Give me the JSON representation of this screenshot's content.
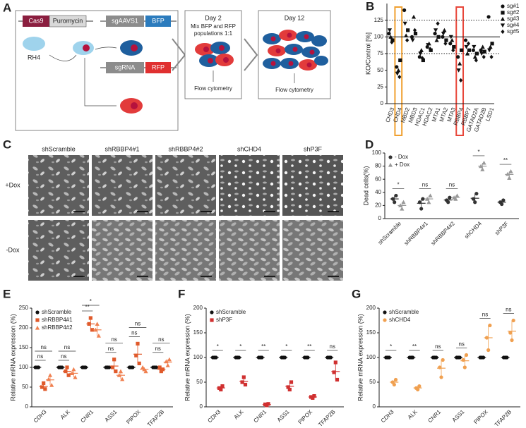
{
  "panel_labels": [
    "A",
    "B",
    "C",
    "D",
    "E",
    "F",
    "G"
  ],
  "diagram": {
    "cas9": "Cas9",
    "puromycin": "Puromycin",
    "cell_line": "RH4",
    "control_guide": "sgAAVS1",
    "control_reporter": "BFP",
    "guide": "sgRNA",
    "reporter": "RFP",
    "day2": {
      "title": "Day 2",
      "text": [
        "Mix BFP and RFP",
        "populations 1:1"
      ],
      "readout": "Flow cytometry"
    },
    "day12": {
      "title": "Day 12",
      "readout": "Flow cytometry"
    }
  },
  "images": {
    "columns": [
      "shScramble",
      "shRBBP4#1",
      "shRBBP4#2",
      "shCHD4",
      "shP3F"
    ],
    "rows": [
      "+Dox",
      "-Dox"
    ]
  },
  "chart_data": [
    {
      "type": "strip",
      "ylabel": "KO/Control [%]",
      "categories": [
        "CHD3",
        "CHD4",
        "MBD2",
        "MBD3",
        "HDAC1",
        "HDAC2",
        "MTA1",
        "MTA2",
        "MTA3",
        "RBBP4",
        "RBBP7",
        "GATAD2A",
        "GATAD2B",
        "LSD1"
      ],
      "highlight_colors": [
        null,
        "#f0a030",
        null,
        null,
        null,
        null,
        null,
        null,
        null,
        "#e8463a",
        null,
        null,
        null,
        null
      ],
      "ylim": [
        0,
        150
      ],
      "yticks": [
        0,
        25,
        50,
        75,
        100,
        125
      ],
      "reference_lines": [
        {
          "value": 100,
          "style": "solid"
        },
        {
          "value": 75,
          "style": "dotted"
        },
        {
          "value": 125,
          "style": "dotted"
        }
      ],
      "legend": "right",
      "series": [
        {
          "name": "sg#1",
          "color": "#111",
          "marker": "circle",
          "values": [
            105,
            55,
            140,
            100,
            70,
            85,
            105,
            100,
            90,
            70,
            95,
            80,
            80,
            130
          ]
        },
        {
          "name": "sg#2",
          "color": "#111",
          "marker": "square",
          "values": [
            95,
            65,
            110,
            105,
            65,
            80,
            100,
            95,
            85,
            80,
            80,
            75,
            78,
            90
          ]
        },
        {
          "name": "sg#3",
          "color": "#111",
          "marker": "triangle",
          "values": [
            100,
            50,
            102,
            130,
            80,
            90,
            95,
            110,
            95,
            60,
            75,
            70,
            85,
            85
          ]
        },
        {
          "name": "sg#4",
          "color": "#111",
          "marker": "triangle-down",
          "values": [
            110,
            45,
            120,
            95,
            75,
            88,
            110,
            105,
            100,
            50,
            85,
            85,
            75,
            80
          ]
        },
        {
          "name": "sg#5",
          "color": "#111",
          "marker": "diamond",
          "values": [
            92,
            40,
            95,
            110,
            68,
            82,
            120,
            90,
            80,
            35,
            90,
            65,
            70,
            70
          ]
        }
      ]
    },
    {
      "type": "dot",
      "ylabel": "Dead cells(%)",
      "categories": [
        "shScramble",
        "shRBBP4#1",
        "shRBBP4#2",
        "shCHD4",
        "shP3F"
      ],
      "ylim": [
        0,
        100
      ],
      "yticks": [
        0,
        20,
        40,
        60,
        80,
        100
      ],
      "legend": "top-left",
      "annotations": [
        [
          "*"
        ],
        [
          "ns"
        ],
        [
          "ns"
        ],
        [
          "*"
        ],
        [
          "**"
        ]
      ],
      "series": [
        {
          "name": "- Dox",
          "color": "#333",
          "marker": "circle",
          "values": [
            [
              30,
              25,
              35
            ],
            [
              25,
              15,
              30
            ],
            [
              28,
              25,
              32
            ],
            [
              30,
              25,
              38
            ],
            [
              25,
              22,
              28
            ]
          ]
        },
        {
          "name": "+ Dox",
          "color": "#999",
          "marker": "triangle",
          "values": [
            [
              20,
              15,
              25
            ],
            [
              30,
              25,
              35
            ],
            [
              32,
              30,
              35
            ],
            [
              80,
              75,
              85
            ],
            [
              68,
              62,
              72
            ]
          ]
        }
      ]
    },
    {
      "type": "dot",
      "ylabel": "Relative mRNA expression (%)",
      "categories": [
        "CDH3",
        "ALK",
        "CNR1",
        "ASS1",
        "PIPOX",
        "TFAP2B"
      ],
      "ylim": [
        0,
        250
      ],
      "yticks": [
        0,
        50,
        100,
        150,
        200,
        250
      ],
      "legend": "top-left",
      "annotations": [
        [
          "ns",
          "ns"
        ],
        [
          "ns",
          "ns"
        ],
        [
          "**",
          "*"
        ],
        [
          "ns",
          "ns"
        ],
        [
          "ns",
          "ns"
        ],
        [
          "ns",
          "ns"
        ]
      ],
      "series": [
        {
          "name": "shScramble",
          "color": "#111",
          "marker": "circle",
          "values": [
            [
              100,
              100,
              100
            ],
            [
              100,
              100,
              100
            ],
            [
              100,
              100,
              100
            ],
            [
              100,
              100,
              100
            ],
            [
              100,
              100,
              100
            ],
            [
              100,
              100,
              100
            ]
          ]
        },
        {
          "name": "shRBBP4#1",
          "color": "#e05a2b",
          "marker": "square",
          "values": [
            [
              50,
              60,
              45
            ],
            [
              90,
              100,
              80
            ],
            [
              210,
              225,
              195
            ],
            [
              100,
              120,
              90
            ],
            [
              130,
              160,
              110
            ],
            [
              100,
              90,
              95
            ]
          ]
        },
        {
          "name": "shRBBP4#2",
          "color": "#f08050",
          "marker": "triangle",
          "values": [
            [
              70,
              80,
              55
            ],
            [
              85,
              95,
              75
            ],
            [
              195,
              210,
              180
            ],
            [
              80,
              90,
              70
            ],
            [
              100,
              95,
              90
            ],
            [
              115,
              105,
              120
            ]
          ]
        }
      ]
    },
    {
      "type": "dot",
      "ylabel": "Relative mRNA expression (%)",
      "categories": [
        "CDH3",
        "ALK",
        "CNR1",
        "ASS1",
        "PIPOX",
        "TFAP2B"
      ],
      "ylim": [
        0,
        200
      ],
      "yticks": [
        0,
        50,
        100,
        150,
        200
      ],
      "legend": "top-left",
      "annotations": [
        [
          "*"
        ],
        [
          "*"
        ],
        [
          "**"
        ],
        [
          "*"
        ],
        [
          "**"
        ],
        [
          "ns"
        ]
      ],
      "series": [
        {
          "name": "shScramble",
          "color": "#111",
          "marker": "circle",
          "values": [
            [
              100,
              100,
              100
            ],
            [
              100,
              100,
              100
            ],
            [
              100,
              100,
              100
            ],
            [
              100,
              100,
              100
            ],
            [
              100,
              100,
              100
            ],
            [
              100,
              100,
              100
            ]
          ]
        },
        {
          "name": "shP3F",
          "color": "#d03030",
          "marker": "square",
          "values": [
            [
              38,
              35,
              42
            ],
            [
              50,
              60,
              45
            ],
            [
              5,
              3,
              6
            ],
            [
              40,
              35,
              50
            ],
            [
              20,
              18,
              22
            ],
            [
              70,
              90,
              55
            ]
          ]
        }
      ]
    },
    {
      "type": "dot",
      "ylabel": "Relative mRNA expression (%)",
      "categories": [
        "CDH3",
        "ALK",
        "CNR1",
        "ASS1",
        "PIPOX",
        "TFAP2B"
      ],
      "ylim": [
        0,
        200
      ],
      "yticks": [
        0,
        50,
        100,
        150,
        200
      ],
      "legend": "top-left",
      "annotations": [
        [
          "*"
        ],
        [
          "**"
        ],
        [
          "ns"
        ],
        [
          "ns"
        ],
        [
          "ns"
        ],
        [
          "ns"
        ]
      ],
      "series": [
        {
          "name": "shScramble",
          "color": "#111",
          "marker": "circle",
          "values": [
            [
              100,
              100,
              100
            ],
            [
              100,
              100,
              100
            ],
            [
              100,
              100,
              100
            ],
            [
              100,
              100,
              100
            ],
            [
              100,
              100,
              100
            ],
            [
              100,
              100,
              100
            ]
          ]
        },
        {
          "name": "shCHD4",
          "color": "#f0a050",
          "marker": "circle",
          "values": [
            [
              50,
              45,
              55
            ],
            [
              38,
              35,
              42
            ],
            [
              80,
              60,
              95
            ],
            [
              95,
              80,
              105
            ],
            [
              140,
              115,
              165
            ],
            [
              150,
              135,
              175
            ]
          ]
        }
      ]
    }
  ]
}
